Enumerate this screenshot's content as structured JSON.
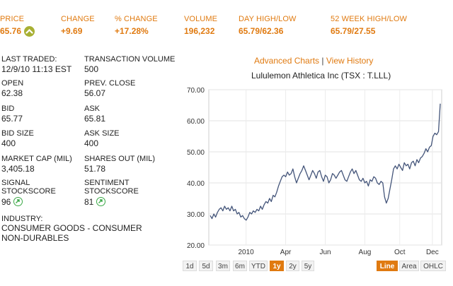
{
  "summary": {
    "price_label": "PRICE",
    "price": "65.76",
    "change_label": "CHANGE",
    "change": "+9.69",
    "pct_change_label": "% CHANGE",
    "pct_change": "+17.28%",
    "volume_label": "VOLUME",
    "volume": "196,232",
    "day_label": "DAY HIGH/LOW",
    "day": "65.79/62.36",
    "week52_label": "52 WEEK HIGH/LOW",
    "week52": "65.79/27.55"
  },
  "details": {
    "last_traded_label": "LAST TRADED:",
    "last_traded": "12/9/10 11:13 EST",
    "tx_volume_label": "TRANSACTION VOLUME",
    "tx_volume": "500",
    "open_label": "OPEN",
    "open": "62.38",
    "prev_close_label": "PREV. CLOSE",
    "prev_close": "56.07",
    "bid_label": "BID",
    "bid": "65.77",
    "ask_label": "ASK",
    "ask": "65.81",
    "bid_size_label": "BID SIZE",
    "bid_size": "400",
    "ask_size_label": "ASK SIZE",
    "ask_size": "400",
    "market_cap_label": "MARKET CAP (MIL)",
    "market_cap": "3,405.18",
    "shares_out_label": "SHARES OUT (MIL)",
    "shares_out": "51.78",
    "signal_label_1": "SIGNAL",
    "signal_label_2": "STOCKSCORE",
    "signal": "96",
    "sentiment_label_1": "SENTIMENT",
    "sentiment_label_2": "STOCKSCORE",
    "sentiment": "81",
    "industry_label": "INDUSTRY:",
    "industry_1": "CONSUMER GOODS - CONSUMER",
    "industry_2": "NON-DURABLES"
  },
  "chart_links": {
    "advanced": "Advanced Charts",
    "sep": "|",
    "history": "View History"
  },
  "ranges": [
    "1d",
    "5d",
    "3m",
    "6m",
    "YTD",
    "1y",
    "2y",
    "5y"
  ],
  "active_range": "1y",
  "chart_types": [
    "Line",
    "Area",
    "OHLC"
  ],
  "active_type": "Line",
  "colors": {
    "accent": "#e07a10",
    "line": "#44557a",
    "up": "#a8b034",
    "score": "#3aa846"
  },
  "chart_data": {
    "type": "line",
    "title": "Lululemon Athletica Inc (TSX : T.LLL)",
    "xlabel": "",
    "ylabel": "",
    "ylim": [
      20,
      70
    ],
    "ytick_labels": [
      "70.00",
      "60.00",
      "50.00",
      "40.00",
      "30.00",
      "20.00"
    ],
    "xtick_labels": [
      "2010",
      "Apr",
      "Jun",
      "Aug",
      "Oct",
      "Dec"
    ],
    "grid": true,
    "series": [
      {
        "values": [
          29.5,
          28.5,
          30.0,
          29.0,
          30.5,
          31.5,
          32.0,
          31.0,
          32.5,
          31.5,
          32.0,
          31.0,
          32.5,
          31.0,
          31.5,
          30.0,
          30.5,
          29.0,
          29.5,
          28.5,
          28.0,
          29.0,
          30.5,
          30.0,
          31.0,
          30.5,
          31.5,
          31.0,
          32.5,
          31.5,
          33.0,
          34.0,
          33.5,
          35.0,
          34.0,
          36.0,
          35.5,
          37.0,
          39.0,
          40.5,
          42.0,
          42.5,
          42.0,
          43.5,
          42.5,
          43.0,
          44.5,
          42.0,
          40.0,
          41.5,
          43.0,
          44.0,
          45.5,
          44.0,
          42.5,
          41.0,
          42.5,
          44.0,
          43.0,
          41.5,
          43.5,
          44.0,
          42.0,
          40.5,
          42.5,
          42.0,
          40.0,
          41.0,
          43.0,
          42.5,
          41.5,
          42.5,
          43.5,
          44.0,
          42.5,
          41.0,
          40.5,
          42.0,
          43.5,
          44.5,
          43.0,
          44.0,
          42.5,
          41.0,
          40.5,
          41.5,
          40.0,
          40.5,
          39.0,
          41.0,
          40.5,
          42.0,
          41.5,
          40.0,
          39.5,
          40.5,
          40.0,
          35.5,
          33.5,
          35.0,
          38.0,
          41.0,
          44.5,
          45.5,
          44.5,
          46.0,
          45.0,
          44.0,
          46.5,
          45.5,
          46.0,
          44.5,
          46.5,
          47.0,
          45.5,
          47.5,
          46.5,
          48.0,
          48.5,
          49.5,
          51.0,
          50.0,
          51.5,
          52.0,
          55.0,
          56.0,
          55.5,
          56.5,
          65.5
        ]
      }
    ]
  }
}
